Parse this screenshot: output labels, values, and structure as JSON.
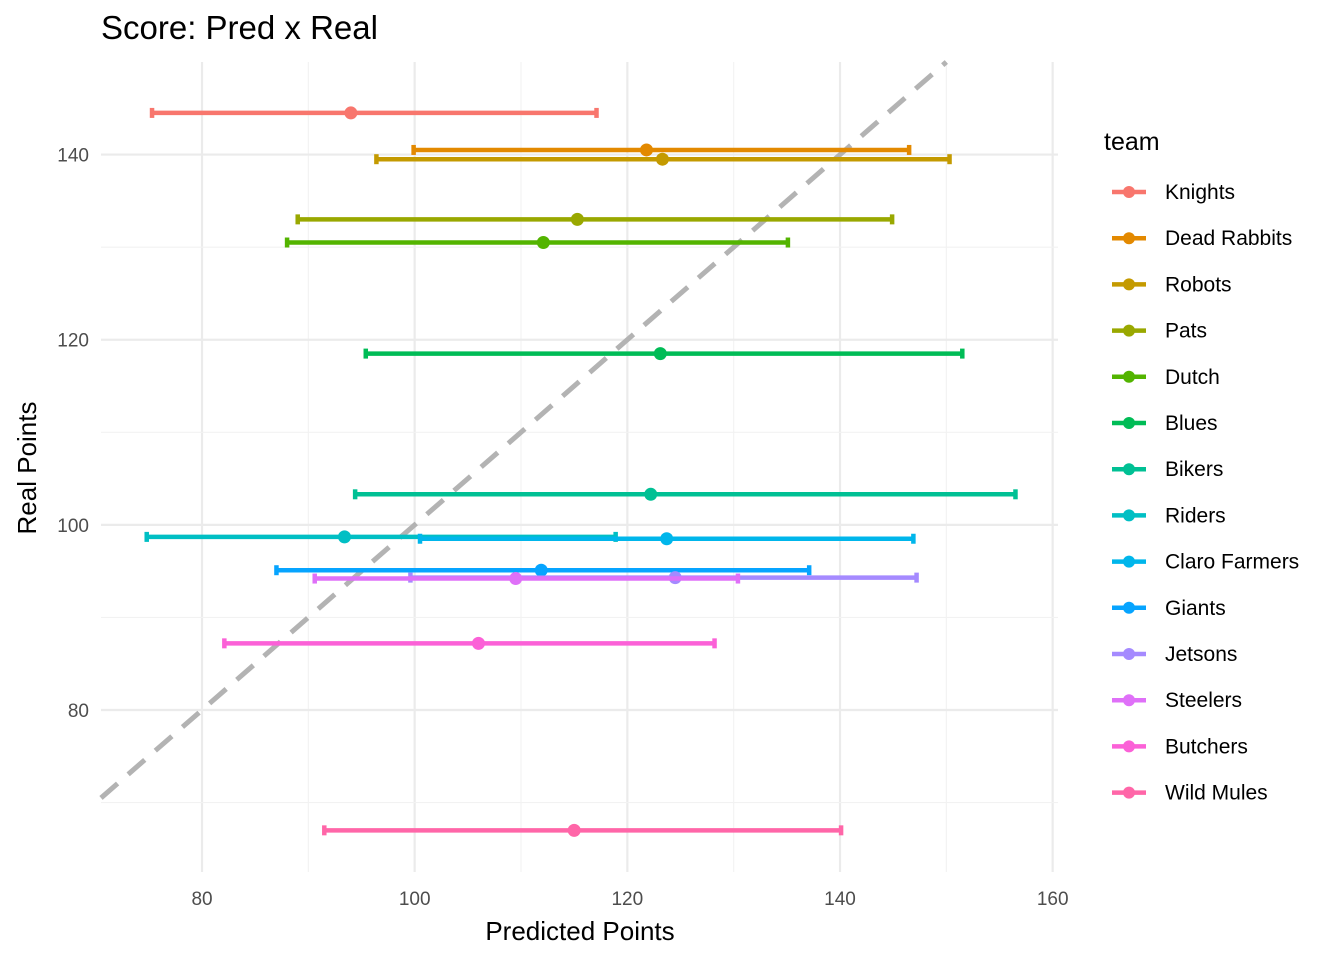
{
  "chart_data": {
    "type": "scatter",
    "title": "Score: Pred x Real",
    "xlabel": "Predicted Points",
    "ylabel": "Real Points",
    "xlim": [
      70.5,
      160.5
    ],
    "ylim": [
      62.5,
      150.0
    ],
    "xticks": [
      80,
      100,
      120,
      140,
      160
    ],
    "yticks": [
      80,
      100,
      120,
      140
    ],
    "grid": true,
    "reference_line": {
      "slope": 1,
      "intercept": 0,
      "style": "dashed",
      "color": "#b3b3b3"
    },
    "legend_title": "team",
    "legend_position": "right",
    "series": [
      {
        "name": "Knights",
        "color": "#F8766D",
        "x": 94.0,
        "y": 144.5,
        "xmin": 75.3,
        "xmax": 117.1
      },
      {
        "name": "Dead Rabbits",
        "color": "#E38900",
        "x": 121.8,
        "y": 140.5,
        "xmin": 99.9,
        "xmax": 146.5
      },
      {
        "name": "Robots",
        "color": "#C49A00",
        "x": 123.3,
        "y": 139.5,
        "xmin": 96.4,
        "xmax": 150.3
      },
      {
        "name": "Pats",
        "color": "#99A800",
        "x": 115.3,
        "y": 133.0,
        "xmin": 89.0,
        "xmax": 144.9
      },
      {
        "name": "Dutch",
        "color": "#53B400",
        "x": 112.1,
        "y": 130.5,
        "xmin": 88.0,
        "xmax": 135.1
      },
      {
        "name": "Blues",
        "color": "#00BC56",
        "x": 123.1,
        "y": 118.5,
        "xmin": 95.4,
        "xmax": 151.5
      },
      {
        "name": "Bikers",
        "color": "#00C094",
        "x": 122.2,
        "y": 103.3,
        "xmin": 94.4,
        "xmax": 156.5
      },
      {
        "name": "Riders",
        "color": "#00BFC4",
        "x": 93.4,
        "y": 98.7,
        "xmin": 74.8,
        "xmax": 118.9
      },
      {
        "name": "Claro Farmers",
        "color": "#00B6EB",
        "x": 123.7,
        "y": 98.5,
        "xmin": 100.5,
        "xmax": 146.9
      },
      {
        "name": "Giants",
        "color": "#06A4FF",
        "x": 111.9,
        "y": 95.1,
        "xmin": 87.0,
        "xmax": 137.1
      },
      {
        "name": "Jetsons",
        "color": "#A58AFF",
        "x": 124.5,
        "y": 94.3,
        "xmin": 99.6,
        "xmax": 147.2
      },
      {
        "name": "Steelers",
        "color": "#DF70F8",
        "x": 109.5,
        "y": 94.2,
        "xmin": 90.6,
        "xmax": 130.4
      },
      {
        "name": "Butchers",
        "color": "#FB61D7",
        "x": 106.0,
        "y": 87.2,
        "xmin": 82.1,
        "xmax": 128.2
      },
      {
        "name": "Wild Mules",
        "color": "#FF66A8",
        "x": 115.0,
        "y": 67.0,
        "xmin": 91.5,
        "xmax": 140.1
      }
    ]
  }
}
